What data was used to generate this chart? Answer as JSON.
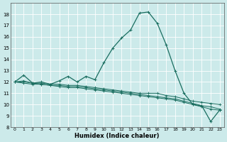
{
  "xlabel": "Humidex (Indice chaleur)",
  "bg_color": "#cceaea",
  "grid_bg_color": "#cceaea",
  "line_color": "#1a6e60",
  "grid_color": "#ffffff",
  "grid_minor_color": "#e8cccc",
  "ylim": [
    8,
    19
  ],
  "xlim": [
    -0.5,
    23.5
  ],
  "yticks": [
    8,
    9,
    10,
    11,
    12,
    13,
    14,
    15,
    16,
    17,
    18
  ],
  "xticks": [
    0,
    1,
    2,
    3,
    4,
    5,
    6,
    7,
    8,
    9,
    10,
    11,
    12,
    13,
    14,
    15,
    16,
    17,
    18,
    19,
    20,
    21,
    22,
    23
  ],
  "line1_x": [
    0,
    1,
    2,
    3,
    4,
    5,
    6,
    7,
    8,
    9,
    10,
    11,
    12,
    13,
    14,
    15,
    16,
    17,
    18,
    19,
    20,
    21,
    22,
    23
  ],
  "line1_y": [
    12.0,
    12.6,
    11.9,
    12.0,
    11.8,
    12.1,
    12.5,
    12.0,
    12.5,
    12.2,
    13.7,
    15.0,
    15.9,
    16.6,
    18.1,
    18.2,
    17.2,
    15.3,
    13.0,
    11.0,
    10.0,
    9.9,
    8.5,
    9.5
  ],
  "line2_x": [
    0,
    1,
    2,
    3,
    4,
    5,
    6,
    7,
    8,
    9,
    10,
    11,
    12,
    13,
    14,
    15,
    16,
    17,
    18,
    19,
    20,
    21,
    22,
    23
  ],
  "line2_y": [
    12.0,
    12.1,
    11.9,
    11.9,
    11.8,
    11.8,
    11.7,
    11.7,
    11.6,
    11.5,
    11.4,
    11.3,
    11.2,
    11.1,
    11.0,
    11.0,
    11.0,
    10.8,
    10.7,
    10.5,
    10.3,
    10.2,
    10.1,
    10.0
  ],
  "line3_x": [
    0,
    1,
    2,
    3,
    4,
    5,
    6,
    7,
    8,
    9,
    10,
    11,
    12,
    13,
    14,
    15,
    16,
    17,
    18,
    19,
    20,
    21,
    22,
    23
  ],
  "line3_y": [
    12.0,
    12.0,
    11.9,
    11.8,
    11.7,
    11.7,
    11.6,
    11.6,
    11.5,
    11.4,
    11.3,
    11.2,
    11.1,
    11.0,
    10.9,
    10.8,
    10.7,
    10.6,
    10.5,
    10.3,
    10.1,
    9.9,
    9.8,
    9.6
  ],
  "line4_x": [
    0,
    1,
    2,
    3,
    4,
    5,
    6,
    7,
    8,
    9,
    10,
    11,
    12,
    13,
    14,
    15,
    16,
    17,
    18,
    19,
    20,
    21,
    22,
    23
  ],
  "line4_y": [
    12.0,
    11.9,
    11.8,
    11.8,
    11.7,
    11.6,
    11.5,
    11.5,
    11.4,
    11.3,
    11.2,
    11.1,
    11.0,
    10.9,
    10.8,
    10.7,
    10.6,
    10.5,
    10.4,
    10.2,
    10.0,
    9.8,
    9.6,
    9.5
  ]
}
